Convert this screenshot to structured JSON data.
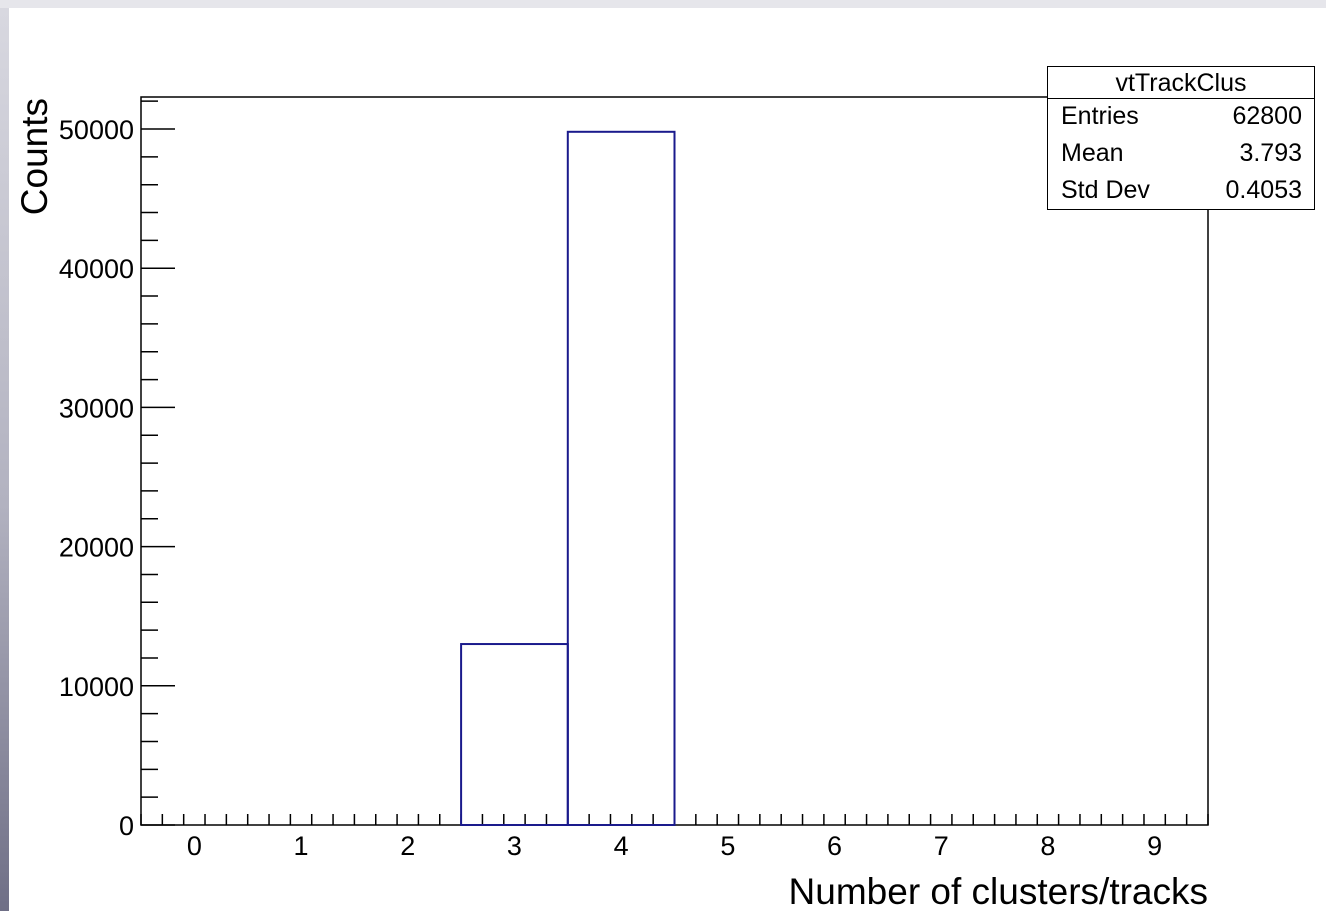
{
  "chart_data": {
    "type": "bar",
    "style": "step-histogram",
    "title": "",
    "xlabel": "Number of clusters/tracks",
    "ylabel": "Counts",
    "xlim": [
      -0.5,
      9.5
    ],
    "ylim": [
      0,
      52300
    ],
    "x_ticks": [
      "0",
      "1",
      "2",
      "3",
      "4",
      "5",
      "6",
      "7",
      "8",
      "9"
    ],
    "y_ticks": [
      "0",
      "10000",
      "20000",
      "30000",
      "40000",
      "50000"
    ],
    "bins": [
      {
        "x": 0,
        "value": 0
      },
      {
        "x": 1,
        "value": 0
      },
      {
        "x": 2,
        "value": 0
      },
      {
        "x": 3,
        "value": 13000
      },
      {
        "x": 4,
        "value": 49800
      },
      {
        "x": 5,
        "value": 0
      },
      {
        "x": 6,
        "value": 0
      },
      {
        "x": 7,
        "value": 0
      },
      {
        "x": 8,
        "value": 0
      },
      {
        "x": 9,
        "value": 0
      }
    ],
    "line_color": "#1a1a8c",
    "grid": false,
    "stats_box": {
      "title": "vtTrackClus",
      "rows": [
        {
          "label": "Entries",
          "value": "62800"
        },
        {
          "label": "Mean",
          "value": "3.793"
        },
        {
          "label": "Std Dev",
          "value": "0.4053"
        }
      ],
      "placement": "top-right"
    }
  }
}
